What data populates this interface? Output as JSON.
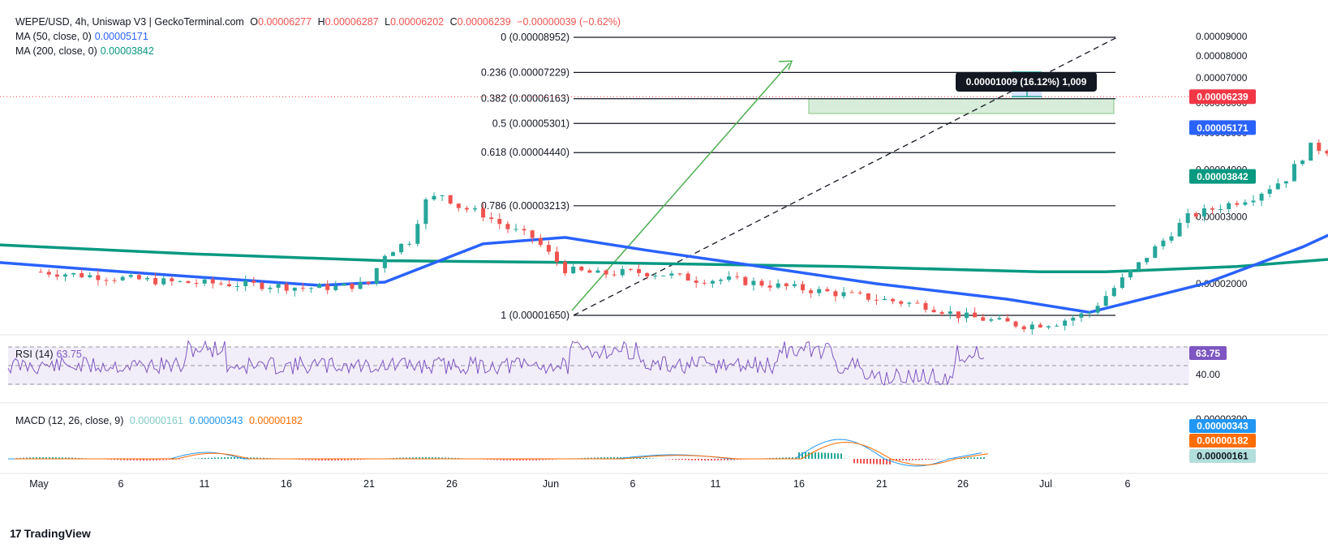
{
  "header": {
    "symbol": "WEPE/USD, 4h, Uniswap V3 | GeckoTerminal.com",
    "o_label": "O",
    "o": "0.00006277",
    "h_label": "H",
    "h": "0.00006287",
    "l_label": "L",
    "l": "0.00006202",
    "c_label": "C",
    "c": "0.00006239",
    "change": "−0.00000039 (−0.62%)",
    "ma50_label": "MA (50, close, 0)",
    "ma50_value": "0.00005171",
    "ma200_label": "MA (200, close, 0)",
    "ma200_value": "0.00003842",
    "rsi_label": "RSI (14)",
    "rsi_value": "63.75",
    "macd_label": "MACD (12, 26, close, 9)",
    "macd_hist": "0.00000161",
    "macd_line": "0.00000343",
    "macd_signal": "0.00000182"
  },
  "branding": {
    "logo_text": "TradingView"
  },
  "colors": {
    "up": "#26a69a",
    "down": "#ef5350",
    "ma50": "#2962ff",
    "ma200": "#089981",
    "rsi": "#7e57c2",
    "macd": "#2196f3",
    "signal": "#ff6d00",
    "fib": "#131722",
    "price_tag": "#f23645",
    "measure": "#2962ff",
    "trend": "#4caf50"
  },
  "chart_data": {
    "type": "candlestick",
    "price_axis": [
      "0.00009000",
      "0.00008000",
      "0.00007000",
      "0.00006000",
      "0.00005000",
      "0.00004000",
      "0.00003000",
      "0.00002000"
    ],
    "price_range": [
      1.1e-05,
      9.55e-05
    ],
    "time_axis": [
      "May",
      "6",
      "11",
      "16",
      "21",
      "26",
      "Jun",
      "6",
      "11",
      "16",
      "21",
      "26",
      "Jul",
      "6"
    ],
    "fib_levels": [
      {
        "label": "0 (0.00008952)",
        "value": 8.952e-05
      },
      {
        "label": "0.236 (0.00007229)",
        "value": 7.229e-05
      },
      {
        "label": "0.382 (0.00006163)",
        "value": 6.163e-05
      },
      {
        "label": "0.5 (0.00005301)",
        "value": 5.301e-05
      },
      {
        "label": "0.618 (0.00004440)",
        "value": 4.44e-05
      },
      {
        "label": "0.786 (0.00003213)",
        "value": 3.213e-05
      },
      {
        "label": "1 (0.00001650)",
        "value": 1.65e-05
      }
    ],
    "price_tags": [
      {
        "text": "0.00006239",
        "value": 6.239e-05,
        "color": "#f23645"
      },
      {
        "text": "0.00005171",
        "value": 5.171e-05,
        "color": "#2962ff"
      },
      {
        "text": "0.00003842",
        "value": 3.842e-05,
        "color": "#089981"
      }
    ],
    "measure_label": "0.00001009 (16.12%) 1,009",
    "close_path": [
      [
        1,
        2.15e-05
      ],
      [
        4,
        2.1e-05
      ],
      [
        7,
        2.05e-05
      ],
      [
        9,
        2.02e-05
      ],
      [
        12,
        2e-05
      ],
      [
        15,
        1.98e-05
      ],
      [
        17,
        1.95e-05
      ],
      [
        19,
        1.96e-05
      ],
      [
        21,
        2e-05
      ],
      [
        22,
        2.4e-05
      ],
      [
        23.5,
        2.6e-05
      ],
      [
        24.5,
        3.3e-05
      ],
      [
        25.5,
        3.45e-05
      ],
      [
        26.5,
        3.2e-05
      ],
      [
        28,
        3.05e-05
      ],
      [
        29.5,
        2.8e-05
      ],
      [
        31,
        2.65e-05
      ],
      [
        32,
        2.4e-05
      ],
      [
        33,
        2.18e-05
      ],
      [
        35,
        2.12e-05
      ],
      [
        37,
        2.15e-05
      ],
      [
        39,
        2.12e-05
      ],
      [
        41,
        2.05e-05
      ],
      [
        43,
        2.05e-05
      ],
      [
        45,
        2e-05
      ],
      [
        47,
        1.95e-05
      ],
      [
        49,
        1.9e-05
      ],
      [
        51,
        1.85e-05
      ],
      [
        53,
        1.8e-05
      ],
      [
        55,
        1.75e-05
      ],
      [
        57,
        1.65e-05
      ],
      [
        59,
        1.6e-05
      ],
      [
        61,
        1.55e-05
      ],
      [
        63,
        1.58e-05
      ],
      [
        65,
        1.68e-05
      ],
      [
        66.5,
        1.95e-05
      ],
      [
        68,
        2.25e-05
      ],
      [
        69.5,
        2.6e-05
      ],
      [
        71,
        3e-05
      ],
      [
        73,
        3.2e-05
      ],
      [
        75,
        3.4e-05
      ],
      [
        77,
        3.8e-05
      ],
      [
        78.5,
        4.6e-05
      ],
      [
        80,
        4.45e-05
      ],
      [
        81,
        4.05e-05
      ],
      [
        82.5,
        3.8e-05
      ],
      [
        84,
        3.95e-05
      ],
      [
        85.5,
        4.3e-05
      ],
      [
        87,
        4.75e-05
      ],
      [
        88.5,
        4.4e-05
      ],
      [
        90,
        4.1e-05
      ],
      [
        91.5,
        4.2e-05
      ],
      [
        93,
        4.05e-05
      ],
      [
        94.5,
        4.3e-05
      ],
      [
        96,
        4.7e-05
      ],
      [
        97,
        4.95e-05
      ],
      [
        97.6,
        6e-05
      ],
      [
        98.2,
        8e-05
      ],
      [
        99,
        8.5e-05
      ],
      [
        99.8,
        7.8e-05
      ],
      [
        100.5,
        8.8e-05
      ],
      [
        101.2,
        7.8e-05
      ],
      [
        102.5,
        7.6e-05
      ],
      [
        103.5,
        7.2e-05
      ],
      [
        104.5,
        6.5e-05
      ],
      [
        105.5,
        5.6e-05
      ],
      [
        106.5,
        5.8e-05
      ],
      [
        107.5,
        5.6e-05
      ],
      [
        108.5,
        5.2e-05
      ],
      [
        110,
        5.15e-05
      ],
      [
        111,
        4.95e-05
      ],
      [
        112,
        4.7e-05
      ],
      [
        113.5,
        4.5e-05
      ],
      [
        115,
        4.4e-05
      ],
      [
        116,
        4.2e-05
      ],
      [
        117,
        3.8e-05
      ],
      [
        117.8,
        3.65e-05
      ],
      [
        118.5,
        4e-05
      ],
      [
        119,
        5.7e-05
      ],
      [
        120,
        6.05e-05
      ],
      [
        121,
        6e-05
      ],
      [
        121.7,
        5.6e-05
      ],
      [
        122.3,
        6.4e-05
      ],
      [
        122.8,
        6.24e-05
      ]
    ],
    "ma50_path": [
      [
        -3,
        2.3e-05
      ],
      [
        6,
        2.15e-05
      ],
      [
        18,
        1.98e-05
      ],
      [
        22,
        2.02e-05
      ],
      [
        28,
        2.55e-05
      ],
      [
        33,
        2.65e-05
      ],
      [
        38,
        2.45e-05
      ],
      [
        44,
        2.25e-05
      ],
      [
        52,
        2e-05
      ],
      [
        60,
        1.82e-05
      ],
      [
        65,
        1.68e-05
      ],
      [
        72,
        2e-05
      ],
      [
        78,
        2.5e-05
      ],
      [
        86,
        3.6e-05
      ],
      [
        93,
        4.2e-05
      ],
      [
        99,
        4.9e-05
      ],
      [
        104,
        5.6e-05
      ],
      [
        111,
        5.9e-05
      ],
      [
        116,
        5.85e-05
      ],
      [
        119,
        5.5e-05
      ],
      [
        122.5,
        5.17e-05
      ]
    ],
    "ma200_path": [
      [
        -3,
        2.55e-05
      ],
      [
        10,
        2.4e-05
      ],
      [
        22,
        2.3e-05
      ],
      [
        36,
        2.27e-05
      ],
      [
        50,
        2.22e-05
      ],
      [
        62,
        2.15e-05
      ],
      [
        66,
        2.15e-05
      ],
      [
        74,
        2.22e-05
      ],
      [
        84,
        2.4e-05
      ],
      [
        92,
        2.5e-05
      ],
      [
        97,
        2.7e-05
      ],
      [
        104,
        3.1e-05
      ],
      [
        112,
        3.35e-05
      ],
      [
        118,
        3.55e-05
      ],
      [
        122.5,
        3.84e-05
      ]
    ],
    "rsi_levels": [
      "40.00"
    ],
    "macd_axis": "0.00000300"
  }
}
